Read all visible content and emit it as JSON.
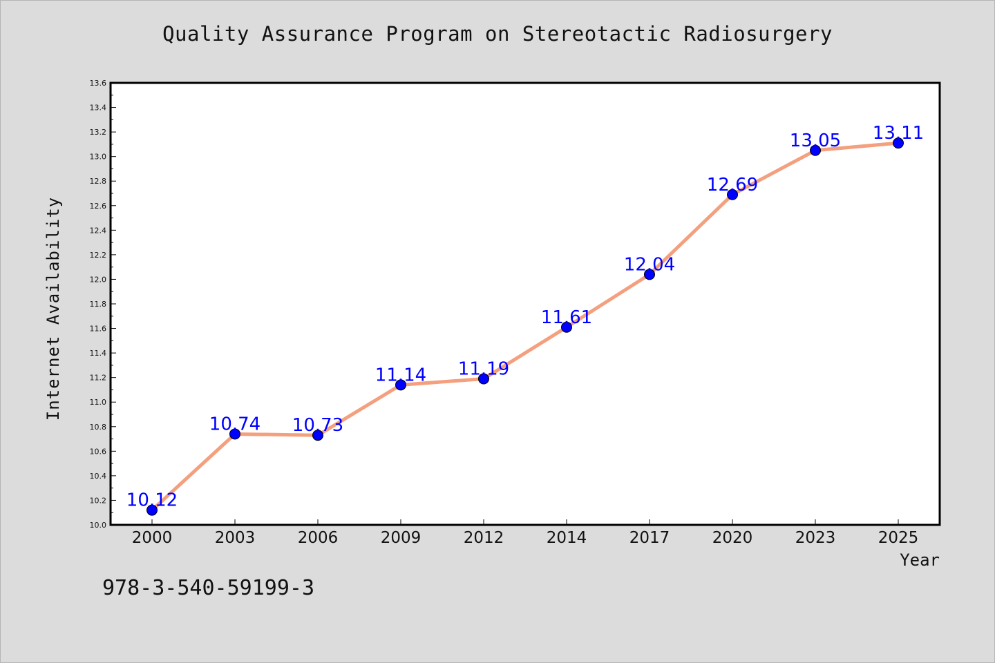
{
  "chart_data": {
    "type": "line",
    "title": "Quality Assurance Program on Stereotactic Radiosurgery",
    "xlabel": "Year",
    "ylabel": "Internet Availability",
    "categories": [
      "2000",
      "2003",
      "2006",
      "2009",
      "2012",
      "2014",
      "2017",
      "2020",
      "2023",
      "2025"
    ],
    "values": [
      10.12,
      10.74,
      10.73,
      11.14,
      11.19,
      11.61,
      12.04,
      12.69,
      13.05,
      13.11
    ],
    "data_labels": [
      "10.12",
      "10.74",
      "10.73",
      "11.14",
      "11.19",
      "11.61",
      "12.04",
      "12.69",
      "13.05",
      "13.11"
    ],
    "ylim": [
      10.0,
      13.6
    ],
    "yticks": [
      "10.0",
      "10.2",
      "10.4",
      "10.6",
      "10.8",
      "11.0",
      "11.2",
      "11.4",
      "11.6",
      "11.8",
      "12.0",
      "12.2",
      "12.4",
      "12.6",
      "12.8",
      "13.0",
      "13.2",
      "13.4",
      "13.6"
    ],
    "grid": false,
    "legend": "none",
    "line_color": "#f4a07f",
    "marker_color": "#0000ff",
    "label_color": "#0000ff"
  },
  "footnote": "978-3-540-59199-3"
}
